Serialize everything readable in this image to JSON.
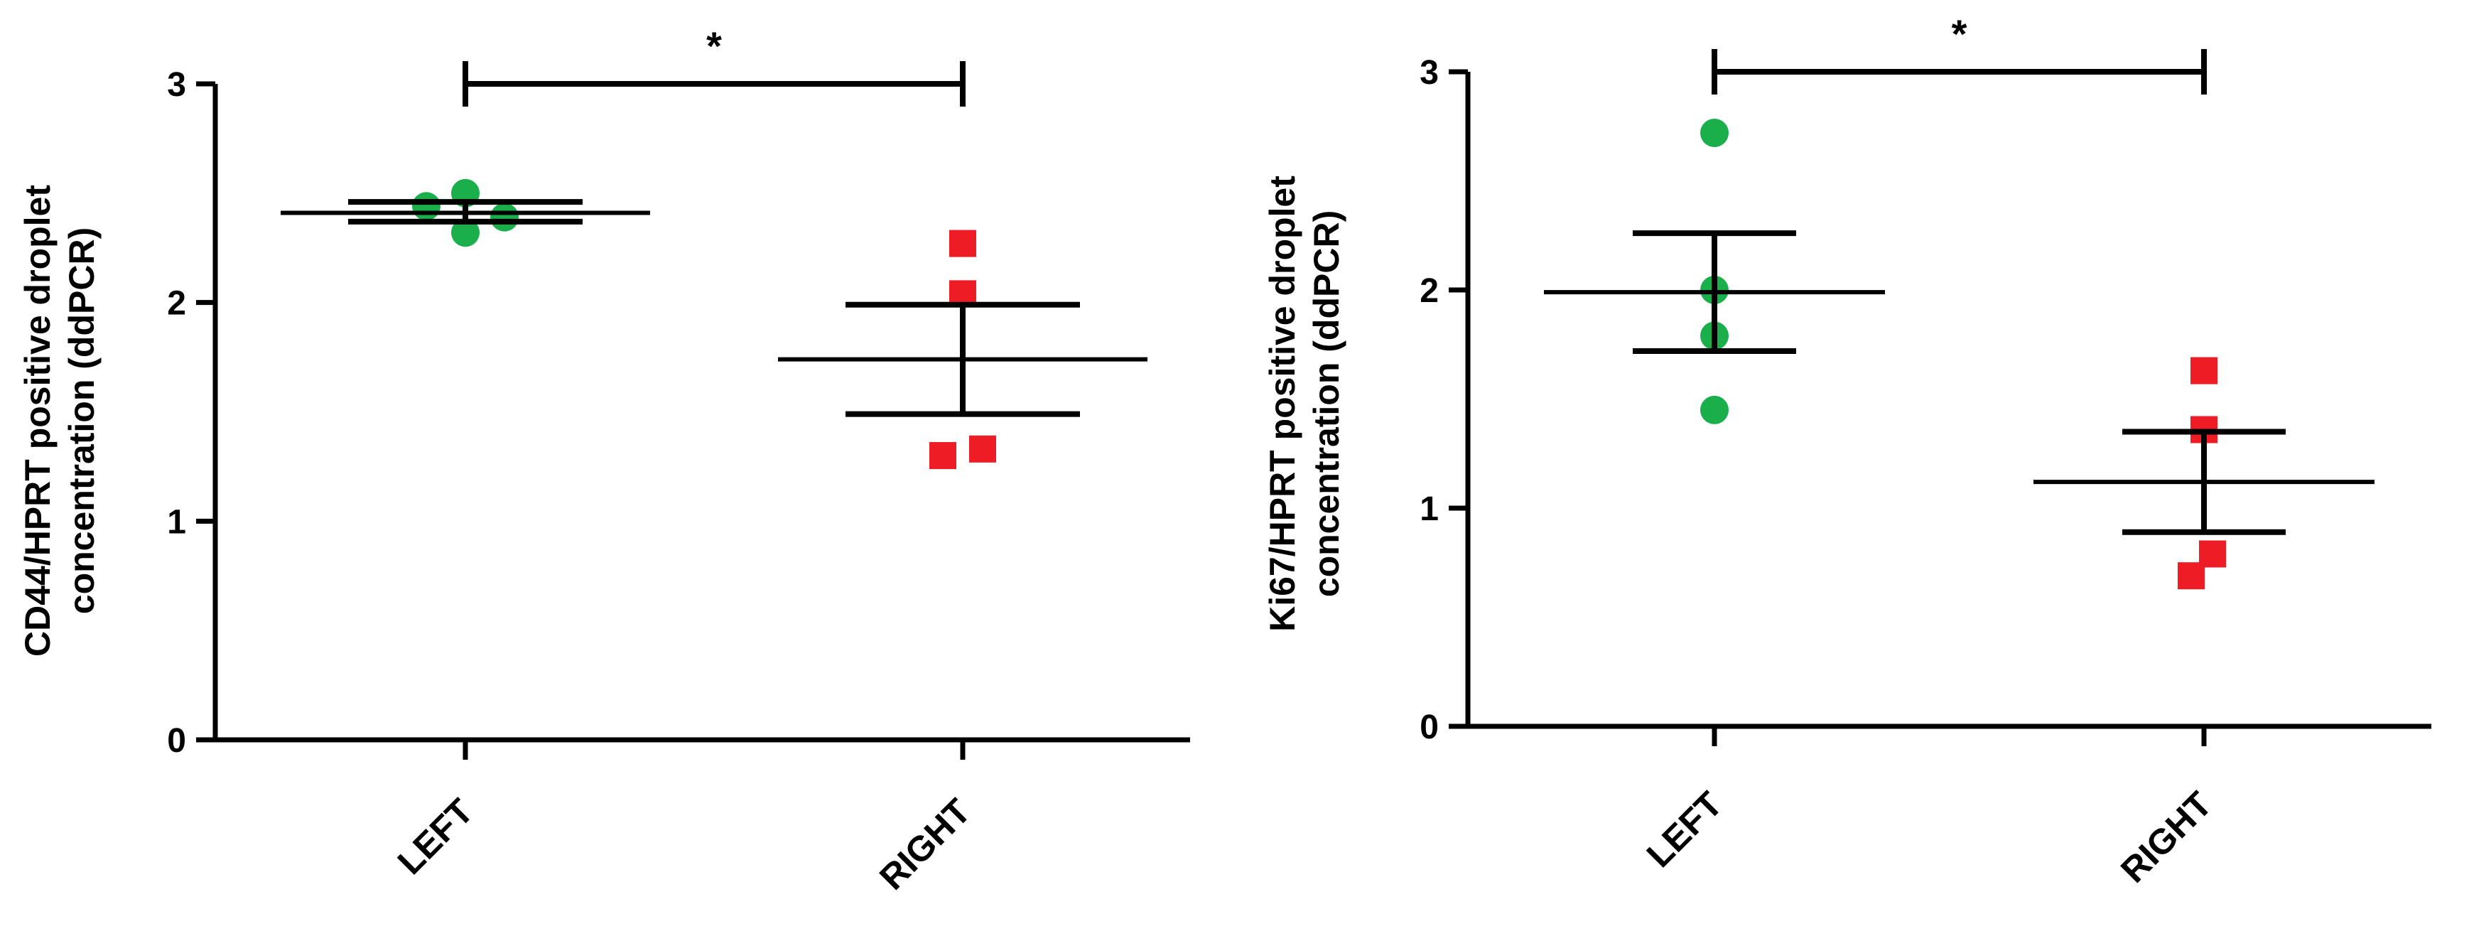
{
  "colors": {
    "left": "#1aaf4b",
    "right": "#ee1c25",
    "ink": "#000000"
  },
  "chart_data": [
    {
      "type": "scatter",
      "ylabel_line1": "CD44/HPRT positive droplet",
      "ylabel_line2": "concentration (ddPCR)",
      "ylim": [
        0,
        3
      ],
      "yticks": [
        0,
        1,
        2,
        3
      ],
      "ytick_labels": [
        "0",
        "1",
        "2",
        "3"
      ],
      "categories": [
        "LEFT",
        "RIGHT"
      ],
      "groups": [
        {
          "category": "LEFT",
          "marker": "circle",
          "points": [
            2.44,
            2.5,
            2.32,
            2.39
          ],
          "mean": 2.41,
          "sem_low": 2.37,
          "sem_high": 2.46
        },
        {
          "category": "RIGHT",
          "marker": "square",
          "points": [
            2.27,
            2.04,
            1.3,
            1.33
          ],
          "mean": 1.74,
          "sem_low": 1.49,
          "sem_high": 1.99
        }
      ],
      "significance": {
        "from": "LEFT",
        "to": "RIGHT",
        "label": "*",
        "level": 3.0
      }
    },
    {
      "type": "scatter",
      "ylabel_line1": "Ki67/HPRT positive droplet",
      "ylabel_line2": "concentration (ddPCR)",
      "ylim": [
        0,
        3
      ],
      "yticks": [
        0,
        1,
        2,
        3
      ],
      "ytick_labels": [
        "0",
        "1",
        "2",
        "3"
      ],
      "categories": [
        "LEFT",
        "RIGHT"
      ],
      "groups": [
        {
          "category": "LEFT",
          "marker": "circle",
          "points": [
            2.72,
            2.0,
            1.79,
            1.45
          ],
          "mean": 1.99,
          "sem_low": 1.72,
          "sem_high": 2.26
        },
        {
          "category": "RIGHT",
          "marker": "square",
          "points": [
            1.63,
            1.36,
            0.79,
            0.69
          ],
          "mean": 1.12,
          "sem_low": 0.89,
          "sem_high": 1.35
        }
      ],
      "significance": {
        "from": "LEFT",
        "to": "RIGHT",
        "label": "*",
        "level": 3.0
      }
    }
  ]
}
